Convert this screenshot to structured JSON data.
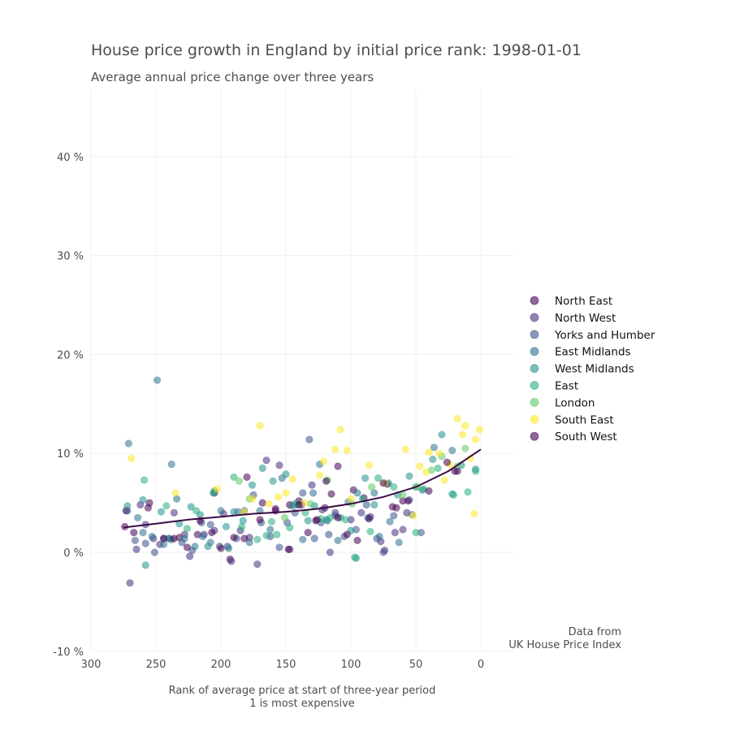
{
  "chart_data": {
    "type": "scatter",
    "title": "House price growth in England by initial price rank: 1998-01-01",
    "subtitle": "Average annual price change over three years",
    "xlabel": [
      "Rank of average price at start of three-year period",
      "1 is most expensive"
    ],
    "ylabel": "",
    "xlim": [
      300,
      -25
    ],
    "ylim": [
      -10,
      47
    ],
    "x_ticks": [
      300,
      250,
      200,
      150,
      100,
      50,
      0
    ],
    "x_tick_labels": [
      "300",
      "250",
      "200",
      "150",
      "100",
      "50",
      "0"
    ],
    "y_ticks": [
      -10,
      0,
      10,
      20,
      30,
      40
    ],
    "y_tick_labels": [
      "-10 %",
      "0 %",
      "10 %",
      "20 %",
      "30 %",
      "40 %"
    ],
    "grid": true,
    "legend_position": "right",
    "caption": [
      "Data from",
      "UK House Price Index"
    ],
    "series": [
      {
        "name": "North East",
        "color": "#440154",
        "points": [
          [
            273,
            4.2
          ],
          [
            255,
            5.0
          ],
          [
            232,
            1.5
          ],
          [
            218,
            1.8
          ],
          [
            205,
            6.0
          ],
          [
            193,
            -0.7
          ],
          [
            180,
            7.6
          ],
          [
            168,
            5.0
          ],
          [
            158,
            4.2
          ],
          [
            147,
            4.8
          ],
          [
            140,
            5.2
          ],
          [
            127,
            3.2
          ],
          [
            120,
            4.5
          ],
          [
            115,
            5.9
          ],
          [
            110,
            8.7
          ],
          [
            98,
            6.3
          ],
          [
            90,
            5.5
          ],
          [
            72,
            6.9
          ],
          [
            68,
            4.6
          ],
          [
            60,
            5.2
          ],
          [
            20,
            8.2
          ]
        ]
      },
      {
        "name": "North West",
        "color": "#472D7B",
        "points": [
          [
            270,
            -3.1
          ],
          [
            265,
            0.3
          ],
          [
            262,
            4.8
          ],
          [
            258,
            2.8
          ],
          [
            252,
            1.4
          ],
          [
            247,
            0.8
          ],
          [
            240,
            1.4
          ],
          [
            236,
            4.0
          ],
          [
            228,
            1.8
          ],
          [
            224,
            -0.4
          ],
          [
            213,
            1.8
          ],
          [
            205,
            2.2
          ],
          [
            198,
            3.9
          ],
          [
            192,
            -0.9
          ],
          [
            185,
            2.2
          ],
          [
            178,
            1.5
          ],
          [
            172,
            -1.2
          ],
          [
            165,
            9.3
          ],
          [
            155,
            8.8
          ],
          [
            147,
            0.3
          ],
          [
            138,
            4.8
          ],
          [
            130,
            6.8
          ],
          [
            122,
            4.3
          ],
          [
            116,
            0.0
          ],
          [
            112,
            4.0
          ],
          [
            100,
            3.3
          ],
          [
            92,
            4.0
          ],
          [
            85,
            3.6
          ],
          [
            77,
            1.1
          ],
          [
            74,
            0.2
          ],
          [
            66,
            2.0
          ],
          [
            60,
            2.3
          ],
          [
            57,
            4.0
          ]
        ]
      },
      {
        "name": "Yorks and Humber",
        "color": "#3B528B",
        "points": [
          [
            272,
            4.2
          ],
          [
            266,
            1.2
          ],
          [
            258,
            0.9
          ],
          [
            251,
            0.0
          ],
          [
            244,
            1.4
          ],
          [
            238,
            1.3
          ],
          [
            230,
            1.0
          ],
          [
            222,
            0.2
          ],
          [
            215,
            3.0
          ],
          [
            208,
            2.8
          ],
          [
            201,
            0.6
          ],
          [
            195,
            0.6
          ],
          [
            188,
            1.4
          ],
          [
            182,
            4.2
          ],
          [
            175,
            5.8
          ],
          [
            169,
            3.0
          ],
          [
            162,
            1.6
          ],
          [
            155,
            0.5
          ],
          [
            149,
            3.0
          ],
          [
            143,
            4.0
          ],
          [
            137,
            6.0
          ],
          [
            132,
            11.4
          ],
          [
            128,
            1.4
          ],
          [
            123,
            3.0
          ],
          [
            117,
            1.8
          ],
          [
            112,
            3.7
          ],
          [
            105,
            1.6
          ],
          [
            96,
            2.3
          ],
          [
            88,
            4.8
          ],
          [
            80,
            1.4
          ],
          [
            75,
            0.0
          ],
          [
            67,
            3.7
          ],
          [
            55,
            5.3
          ],
          [
            46,
            2.0
          ]
        ]
      },
      {
        "name": "East Midlands",
        "color": "#2C728E",
        "points": [
          [
            271,
            11.0
          ],
          [
            264,
            3.5
          ],
          [
            260,
            2.0
          ],
          [
            253,
            1.6
          ],
          [
            249,
            17.4
          ],
          [
            244,
            0.8
          ],
          [
            238,
            8.9
          ],
          [
            234,
            5.4
          ],
          [
            228,
            1.4
          ],
          [
            220,
            0.6
          ],
          [
            214,
            1.6
          ],
          [
            208,
            1.0
          ],
          [
            200,
            4.2
          ],
          [
            194,
            0.4
          ],
          [
            187,
            4.1
          ],
          [
            178,
            1.0
          ],
          [
            170,
            4.2
          ],
          [
            162,
            2.3
          ],
          [
            153,
            7.5
          ],
          [
            145,
            4.7
          ],
          [
            137,
            1.3
          ],
          [
            129,
            6.0
          ],
          [
            124,
            8.9
          ],
          [
            118,
            3.2
          ],
          [
            110,
            1.2
          ],
          [
            102,
            5.1
          ],
          [
            95,
            6.0
          ],
          [
            87,
            3.5
          ],
          [
            82,
            6.0
          ],
          [
            78,
            1.6
          ],
          [
            70,
            3.1
          ],
          [
            63,
            1.0
          ],
          [
            53,
            3.8
          ],
          [
            45,
            6.3
          ],
          [
            36,
            10.6
          ],
          [
            22,
            10.3
          ]
        ]
      },
      {
        "name": "West Midlands",
        "color": "#21918C",
        "points": [
          [
            272,
            4.7
          ],
          [
            260,
            5.3
          ],
          [
            258,
            -1.3
          ],
          [
            246,
            4.1
          ],
          [
            240,
            1.4
          ],
          [
            232,
            2.9
          ],
          [
            223,
            4.6
          ],
          [
            216,
            3.8
          ],
          [
            210,
            0.6
          ],
          [
            205,
            6.2
          ],
          [
            196,
            2.6
          ],
          [
            190,
            4.1
          ],
          [
            183,
            3.2
          ],
          [
            176,
            6.8
          ],
          [
            168,
            8.5
          ],
          [
            160,
            7.2
          ],
          [
            150,
            7.9
          ],
          [
            143,
            4.9
          ],
          [
            133,
            3.2
          ],
          [
            128,
            4.7
          ],
          [
            119,
            3.3
          ],
          [
            108,
            3.5
          ],
          [
            100,
            2.2
          ],
          [
            96,
            -0.6
          ],
          [
            89,
            7.5
          ],
          [
            82,
            4.8
          ],
          [
            71,
            7.0
          ],
          [
            64,
            5.8
          ],
          [
            55,
            7.7
          ],
          [
            50,
            6.6
          ],
          [
            37,
            9.4
          ],
          [
            30,
            11.9
          ],
          [
            22,
            5.9
          ],
          [
            15,
            8.8
          ],
          [
            4,
            8.4
          ]
        ]
      },
      {
        "name": "East",
        "color": "#28AE80",
        "points": [
          [
            259,
            7.3
          ],
          [
            242,
            4.7
          ],
          [
            226,
            2.4
          ],
          [
            219,
            4.2
          ],
          [
            206,
            6.0
          ],
          [
            190,
            7.6
          ],
          [
            184,
            2.6
          ],
          [
            172,
            1.3
          ],
          [
            165,
            1.7
          ],
          [
            161,
            3.1
          ],
          [
            157,
            1.8
          ],
          [
            147,
            2.5
          ],
          [
            142,
            4.8
          ],
          [
            135,
            4.0
          ],
          [
            123,
            3.4
          ],
          [
            116,
            3.5
          ],
          [
            104,
            3.3
          ],
          [
            97,
            -0.5
          ],
          [
            91,
            5.4
          ],
          [
            85,
            2.1
          ],
          [
            79,
            7.5
          ],
          [
            67,
            6.6
          ],
          [
            50,
            2.0
          ],
          [
            44,
            6.4
          ],
          [
            33,
            8.5
          ],
          [
            21,
            5.8
          ],
          [
            10,
            6.1
          ],
          [
            4,
            8.2
          ]
        ]
      },
      {
        "name": "London",
        "color": "#5EC962",
        "points": [
          [
            186,
            7.2
          ],
          [
            178,
            5.4
          ],
          [
            151,
            3.5
          ],
          [
            131,
            4.9
          ],
          [
            118,
            7.3
          ],
          [
            99,
            4.9
          ],
          [
            84,
            6.6
          ],
          [
            60,
            5.8
          ],
          [
            49,
            6.6
          ],
          [
            38,
            8.3
          ],
          [
            30,
            9.7
          ],
          [
            18,
            8.7
          ],
          [
            12,
            10.5
          ]
        ]
      },
      {
        "name": "South East",
        "color": "#FDE725",
        "points": [
          [
            269,
            9.5
          ],
          [
            235,
            6.0
          ],
          [
            203,
            6.4
          ],
          [
            182,
            4.1
          ],
          [
            176,
            5.4
          ],
          [
            170,
            12.8
          ],
          [
            163,
            4.9
          ],
          [
            156,
            5.6
          ],
          [
            150,
            6.0
          ],
          [
            145,
            7.4
          ],
          [
            136,
            5.0
          ],
          [
            124,
            7.8
          ],
          [
            121,
            9.2
          ],
          [
            112,
            10.4
          ],
          [
            108,
            12.4
          ],
          [
            103,
            10.3
          ],
          [
            100,
            5.4
          ],
          [
            86,
            8.8
          ],
          [
            74,
            7.0
          ],
          [
            58,
            10.4
          ],
          [
            52,
            3.7
          ],
          [
            47,
            8.7
          ],
          [
            42,
            8.1
          ],
          [
            40,
            10.1
          ],
          [
            32,
            10.0
          ],
          [
            28,
            7.3
          ],
          [
            24,
            8.9
          ],
          [
            18,
            13.5
          ],
          [
            14,
            11.9
          ],
          [
            12,
            12.8
          ],
          [
            8,
            9.5
          ],
          [
            5,
            3.9
          ],
          [
            4,
            11.4
          ],
          [
            1,
            12.4
          ]
        ]
      },
      {
        "name": "South West",
        "color": "#440154",
        "points": [
          [
            274,
            2.6
          ],
          [
            267,
            2.0
          ],
          [
            256,
            4.5
          ],
          [
            244,
            1.4
          ],
          [
            236,
            1.4
          ],
          [
            226,
            0.5
          ],
          [
            216,
            3.2
          ],
          [
            207,
            2.0
          ],
          [
            200,
            0.4
          ],
          [
            190,
            1.5
          ],
          [
            182,
            1.4
          ],
          [
            170,
            3.3
          ],
          [
            158,
            4.4
          ],
          [
            148,
            0.3
          ],
          [
            140,
            4.8
          ],
          [
            133,
            2.0
          ],
          [
            126,
            3.3
          ],
          [
            119,
            7.2
          ],
          [
            110,
            3.5
          ],
          [
            103,
            1.8
          ],
          [
            95,
            1.2
          ],
          [
            86,
            3.4
          ],
          [
            75,
            7.0
          ],
          [
            65,
            4.5
          ],
          [
            56,
            5.2
          ],
          [
            40,
            6.2
          ],
          [
            26,
            9.1
          ],
          [
            18,
            8.2
          ]
        ]
      }
    ],
    "trend": {
      "x": [
        275,
        250,
        225,
        200,
        175,
        150,
        125,
        100,
        75,
        50,
        25,
        0
      ],
      "y": [
        2.5,
        2.9,
        3.3,
        3.6,
        3.9,
        4.1,
        4.4,
        4.9,
        5.6,
        6.6,
        8.2,
        10.4
      ]
    }
  }
}
